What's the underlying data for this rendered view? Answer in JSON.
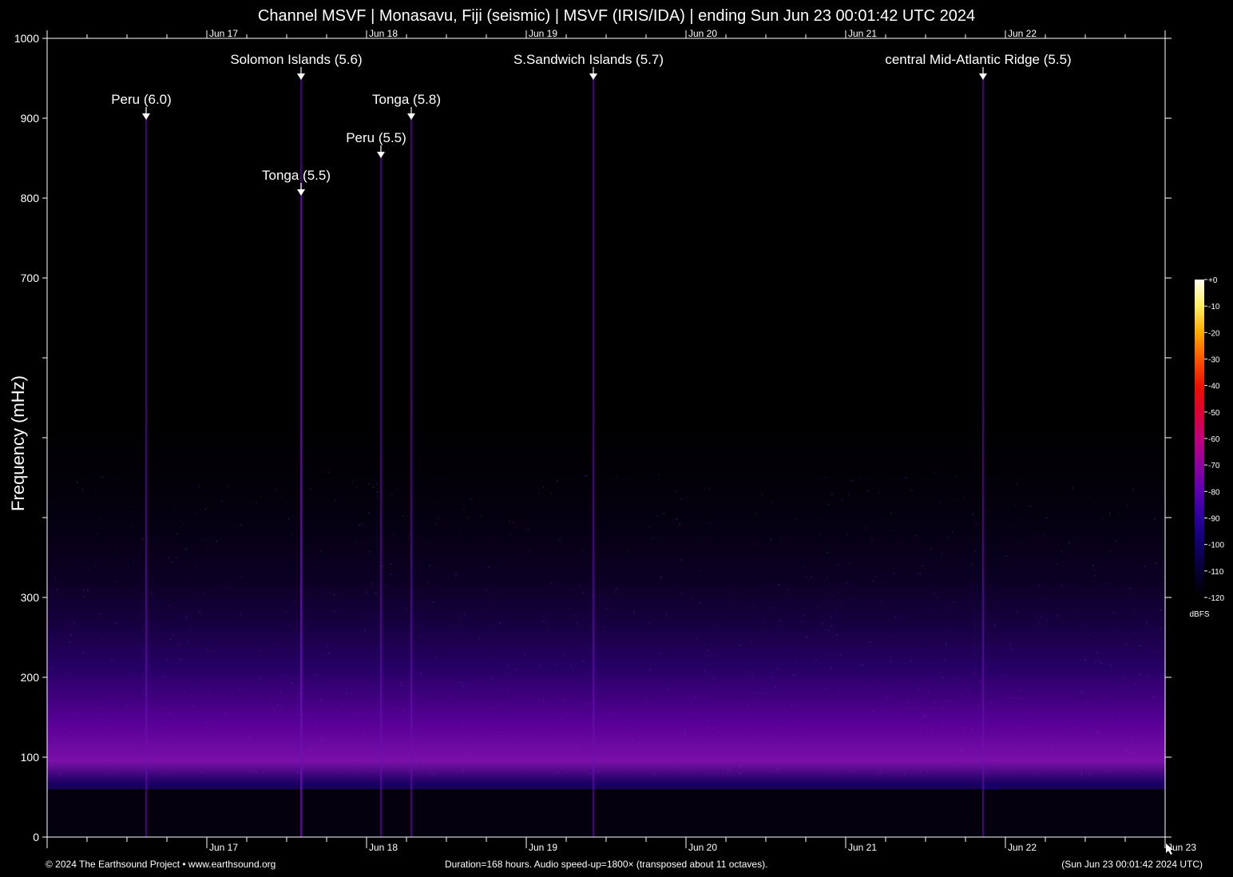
{
  "title": "Channel MSVF | Monasavu, Fiji (seismic) | MSVF (IRIS/IDA) | ending Sun Jun 23 00:01:42 UTC 2024",
  "footer": {
    "left": "© 2024 The Earthsound Project • www.earthsound.org",
    "center": "Duration=168 hours. Audio speed-up=1800× (transposed about 11 octaves).",
    "right": "(Sun Jun 23 00:01:42 2024 UTC)"
  },
  "chart_data": {
    "type": "heatmap",
    "title": "Channel MSVF | Monasavu, Fiji (seismic) | MSVF (IRIS/IDA) | ending Sun Jun 23 00:01:42 UTC 2024",
    "ylabel": "Frequency (mHz)",
    "xlabel": "",
    "ylim": [
      0,
      1000
    ],
    "xlim_days": [
      "Jun 16 00:01:42",
      "Jun 23 00:01:42"
    ],
    "y_ticks": [
      0,
      100,
      200,
      300,
      400,
      500,
      600,
      700,
      800,
      900,
      1000
    ],
    "y_tick_labels": [
      "0",
      "100",
      "200",
      "300",
      "",
      "",
      "",
      "700",
      "800",
      "900",
      "1000"
    ],
    "x_tick_labels": [
      {
        "label": "Jun 17",
        "day": 1
      },
      {
        "label": "Jun 18",
        "day": 2
      },
      {
        "label": "Jun 19",
        "day": 3
      },
      {
        "label": "Jun 20",
        "day": 4
      },
      {
        "label": "Jun 21",
        "day": 5
      },
      {
        "label": "Jun 22",
        "day": 6
      },
      {
        "label": "Jun 23",
        "day": 7
      }
    ],
    "top_tick_labels": [
      "Jun 17",
      "Jun 18",
      "Jun 19",
      "Jun 20",
      "Jun 21",
      "Jun 22"
    ],
    "colorbar": {
      "unit": "dBFS",
      "ticks": [
        "+0",
        "-10",
        "-20",
        "-30",
        "-40",
        "-50",
        "-60",
        "-70",
        "-80",
        "-90",
        "-100",
        "-110",
        "-120"
      ],
      "colors": [
        "#ffffee",
        "#ffee66",
        "#ffaa00",
        "#ff5500",
        "#ee1100",
        "#dd0033",
        "#c0007a",
        "#9000a0",
        "#5a00b0",
        "#2a00a0",
        "#10006a",
        "#050030",
        "#000000"
      ]
    },
    "events": [
      {
        "label": "Peru (6.0)",
        "day": 0.62,
        "freq": 900
      },
      {
        "label": "Solomon Islands (5.6)",
        "day": 1.59,
        "freq": 950
      },
      {
        "label": "Tonga (5.5)",
        "day": 1.59,
        "freq": 805
      },
      {
        "label": "Tonga (5.8)",
        "day": 2.28,
        "freq": 900
      },
      {
        "label": "Peru (5.5)",
        "day": 2.09,
        "freq": 852
      },
      {
        "label": "S.Sandwich Islands (5.7)",
        "day": 3.42,
        "freq": 950
      },
      {
        "label": "central Mid-Atlantic Ridge (5.5)",
        "day": 5.86,
        "freq": 950
      }
    ]
  }
}
